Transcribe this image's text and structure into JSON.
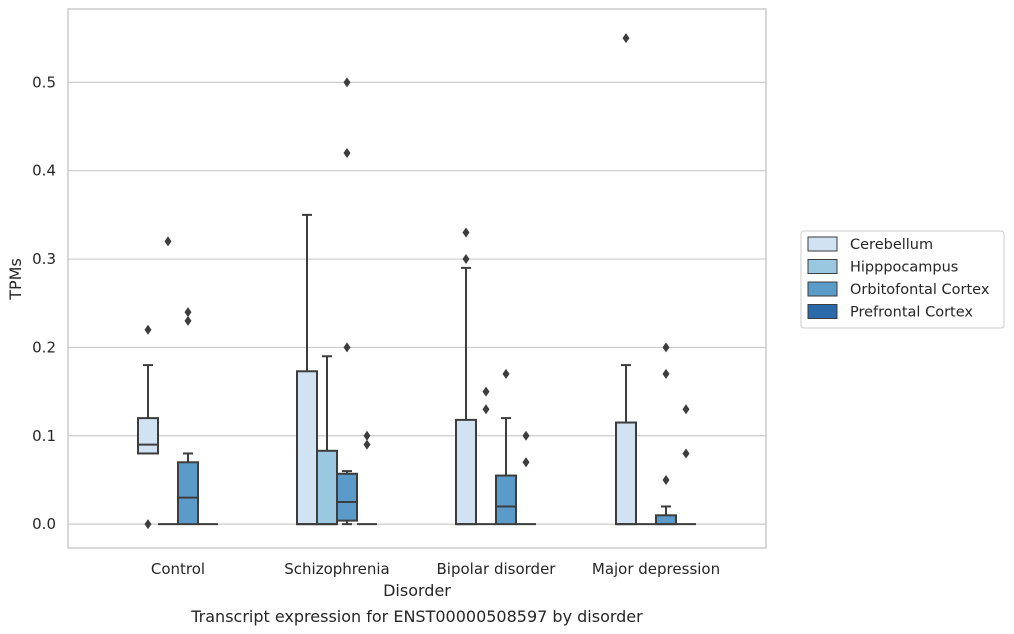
{
  "chart_data": {
    "type": "box",
    "title": "Transcript expression for ENST00000508597 by disorder",
    "xlabel": "Disorder",
    "ylabel": "TPMs",
    "categories": [
      "Control",
      "Schizophrenia",
      "Bipolar disorder",
      "Major depression"
    ],
    "yticks": [
      "0.0",
      "0.1",
      "0.2",
      "0.3",
      "0.4",
      "0.5"
    ],
    "ylim": [
      -0.027,
      0.583
    ],
    "grid": "horizontal",
    "legend_position": "right",
    "series": [
      {
        "name": "Cerebellum",
        "color": "#d1e2f2",
        "boxes": [
          {
            "q1": 0.08,
            "median": 0.09,
            "q3": 0.12,
            "whisker_low": 0.08,
            "whisker_high": 0.18,
            "outliers": [
              0.22,
              0.0
            ]
          },
          {
            "q1": 0.0,
            "median": 0.0,
            "q3": 0.173,
            "whisker_low": 0.0,
            "whisker_high": 0.35,
            "outliers": []
          },
          {
            "q1": 0.0,
            "median": 0.0,
            "q3": 0.118,
            "whisker_low": 0.0,
            "whisker_high": 0.29,
            "outliers": [
              0.3,
              0.33
            ]
          },
          {
            "q1": 0.0,
            "median": 0.0,
            "q3": 0.115,
            "whisker_low": 0.0,
            "whisker_high": 0.18,
            "outliers": [
              0.55
            ]
          }
        ]
      },
      {
        "name": "Hipppocampus",
        "color": "#9ac8e0",
        "boxes": [
          {
            "q1": 0.0,
            "median": 0.0,
            "q3": 0.0,
            "whisker_low": 0.0,
            "whisker_high": 0.0,
            "outliers": [
              0.32
            ]
          },
          {
            "q1": 0.0,
            "median": 0.0,
            "q3": 0.083,
            "whisker_low": 0.0,
            "whisker_high": 0.19,
            "outliers": []
          },
          {
            "q1": 0.0,
            "median": 0.0,
            "q3": 0.0,
            "whisker_low": 0.0,
            "whisker_high": 0.0,
            "outliers": [
              0.13,
              0.15
            ]
          },
          {
            "q1": 0.0,
            "median": 0.0,
            "q3": 0.0,
            "whisker_low": 0.0,
            "whisker_high": 0.0,
            "outliers": []
          }
        ]
      },
      {
        "name": "Orbitofontal Cortex",
        "color": "#5a9bc9",
        "boxes": [
          {
            "q1": 0.0,
            "median": 0.03,
            "q3": 0.07,
            "whisker_low": 0.0,
            "whisker_high": 0.08,
            "outliers": [
              0.23,
              0.24
            ]
          },
          {
            "q1": 0.004,
            "median": 0.025,
            "q3": 0.057,
            "whisker_low": 0.0,
            "whisker_high": 0.06,
            "outliers": [
              0.2,
              0.42,
              0.5
            ]
          },
          {
            "q1": 0.0,
            "median": 0.02,
            "q3": 0.055,
            "whisker_low": 0.0,
            "whisker_high": 0.12,
            "outliers": [
              0.17
            ]
          },
          {
            "q1": 0.0,
            "median": 0.0,
            "q3": 0.01,
            "whisker_low": 0.0,
            "whisker_high": 0.02,
            "outliers": [
              0.05,
              0.17,
              0.2
            ]
          }
        ]
      },
      {
        "name": "Prefrontal Cortex",
        "color": "#2a6aab",
        "boxes": [
          {
            "q1": 0.0,
            "median": 0.0,
            "q3": 0.0,
            "whisker_low": 0.0,
            "whisker_high": 0.0,
            "outliers": []
          },
          {
            "q1": 0.0,
            "median": 0.0,
            "q3": 0.0,
            "whisker_low": 0.0,
            "whisker_high": 0.0,
            "outliers": [
              0.09,
              0.1
            ]
          },
          {
            "q1": 0.0,
            "median": 0.0,
            "q3": 0.0,
            "whisker_low": 0.0,
            "whisker_high": 0.0,
            "outliers": [
              0.07,
              0.1
            ]
          },
          {
            "q1": 0.0,
            "median": 0.0,
            "q3": 0.0,
            "whisker_low": 0.0,
            "whisker_high": 0.0,
            "outliers": [
              0.08,
              0.13
            ]
          }
        ]
      }
    ]
  }
}
